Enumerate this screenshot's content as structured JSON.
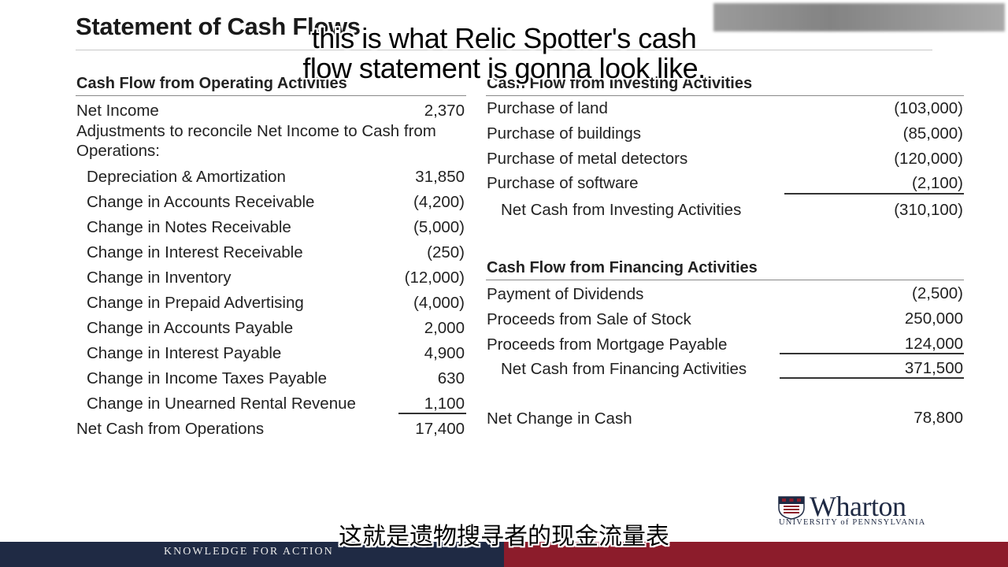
{
  "title": "Statement of Cash Flows",
  "operating": {
    "heading": "Cash Flow from Operating Activities",
    "net_income_label": "Net Income",
    "net_income_value": "2,370",
    "adjustments_label_1": "Adjustments to reconcile Net Income to Cash from",
    "adjustments_label_2": "Operations:",
    "items": [
      {
        "label": "Depreciation & Amortization",
        "value": "31,850"
      },
      {
        "label": "Change in Accounts Receivable",
        "value": "(4,200)"
      },
      {
        "label": "Change in Notes Receivable",
        "value": "(5,000)"
      },
      {
        "label": "Change in Interest Receivable",
        "value": "(250)"
      },
      {
        "label": "Change in Inventory",
        "value": "(12,000)"
      },
      {
        "label": "Change in Prepaid Advertising",
        "value": "(4,000)"
      },
      {
        "label": "Change in Accounts Payable",
        "value": "2,000"
      },
      {
        "label": "Change in Interest Payable",
        "value": "4,900"
      },
      {
        "label": "Change in Income Taxes Payable",
        "value": "630"
      },
      {
        "label": "Change in Unearned Rental Revenue",
        "value": "1,100"
      }
    ],
    "total_label": "Net Cash from Operations",
    "total_value": "17,400"
  },
  "investing": {
    "heading": "Cash Flow from Investing Activities",
    "items": [
      {
        "label": "Purchase of land",
        "value": "(103,000)"
      },
      {
        "label": "Purchase of buildings",
        "value": "(85,000)"
      },
      {
        "label": "Purchase of metal detectors",
        "value": "(120,000)"
      },
      {
        "label": "Purchase of software",
        "value": "(2,100)"
      }
    ],
    "total_label": "Net Cash from Investing Activities",
    "total_value": "(310,100)"
  },
  "financing": {
    "heading": "Cash Flow from Financing Activities",
    "items": [
      {
        "label": "Payment of Dividends",
        "value": "(2,500)"
      },
      {
        "label": "Proceeds from Sale of Stock",
        "value": "250,000"
      },
      {
        "label": "Proceeds from Mortgage Payable",
        "value": "124,000"
      }
    ],
    "total_label": "Net Cash from Financing Activities",
    "total_value": "371,500"
  },
  "net_change": {
    "label": "Net Change in Cash",
    "value": "78,800"
  },
  "subtitles": {
    "en_line1": "this is what Relic Spotter's cash",
    "en_line2": "flow statement is gonna look like.",
    "zh": "这就是遗物搜寻者的现金流量表"
  },
  "footer": {
    "tagline": "KNOWLEDGE FOR ACTION"
  },
  "logo": {
    "name": "Wharton",
    "subtitle": "UNIVERSITY of PENNSYLVANIA"
  },
  "colors": {
    "navy": "#1f2a44",
    "crimson": "#8c1c2b"
  }
}
